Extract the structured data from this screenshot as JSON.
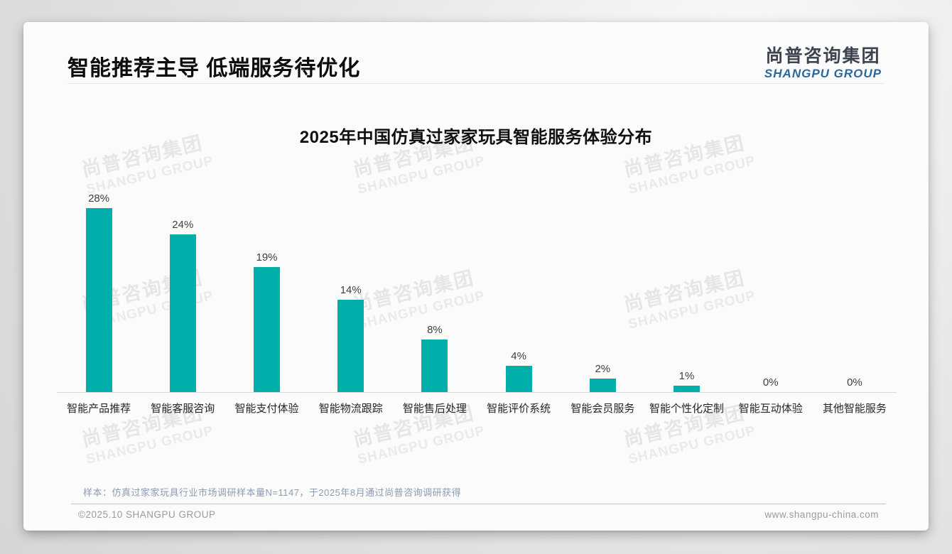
{
  "page": {
    "title": "智能推荐主导 低端服务待优化",
    "logo": {
      "cn": "尚普咨询集团",
      "en": "SHANGPU GROUP"
    },
    "watermark": {
      "cn": "尚普咨询集团",
      "en": "SHANGPU GROUP"
    },
    "note": "样本：仿真过家家玩具行业市场调研样本量N=1147，于2025年8月通过尚普咨询调研获得",
    "footer": {
      "left": "©2025.10 SHANGPU GROUP",
      "right": "www.shangpu-china.com"
    }
  },
  "chart_data": {
    "type": "bar",
    "title": "2025年中国仿真过家家玩具智能服务体验分布",
    "categories": [
      "智能产品推荐",
      "智能客服咨询",
      "智能支付体验",
      "智能物流跟踪",
      "智能售后处理",
      "智能评价系统",
      "智能会员服务",
      "智能个性化定制",
      "智能互动体验",
      "其他智能服务"
    ],
    "values": [
      28,
      24,
      19,
      14,
      8,
      4,
      2,
      1,
      0,
      0
    ],
    "data_labels": [
      "28%",
      "24%",
      "19%",
      "14%",
      "8%",
      "4%",
      "2%",
      "1%",
      "0%",
      "0%"
    ],
    "unit": "%",
    "xlabel": "",
    "ylabel": "",
    "ylim": [
      0,
      30
    ],
    "grid": false,
    "legend": "none",
    "bar_color": "#00AFA9",
    "label_color": "#3f3f3f"
  }
}
